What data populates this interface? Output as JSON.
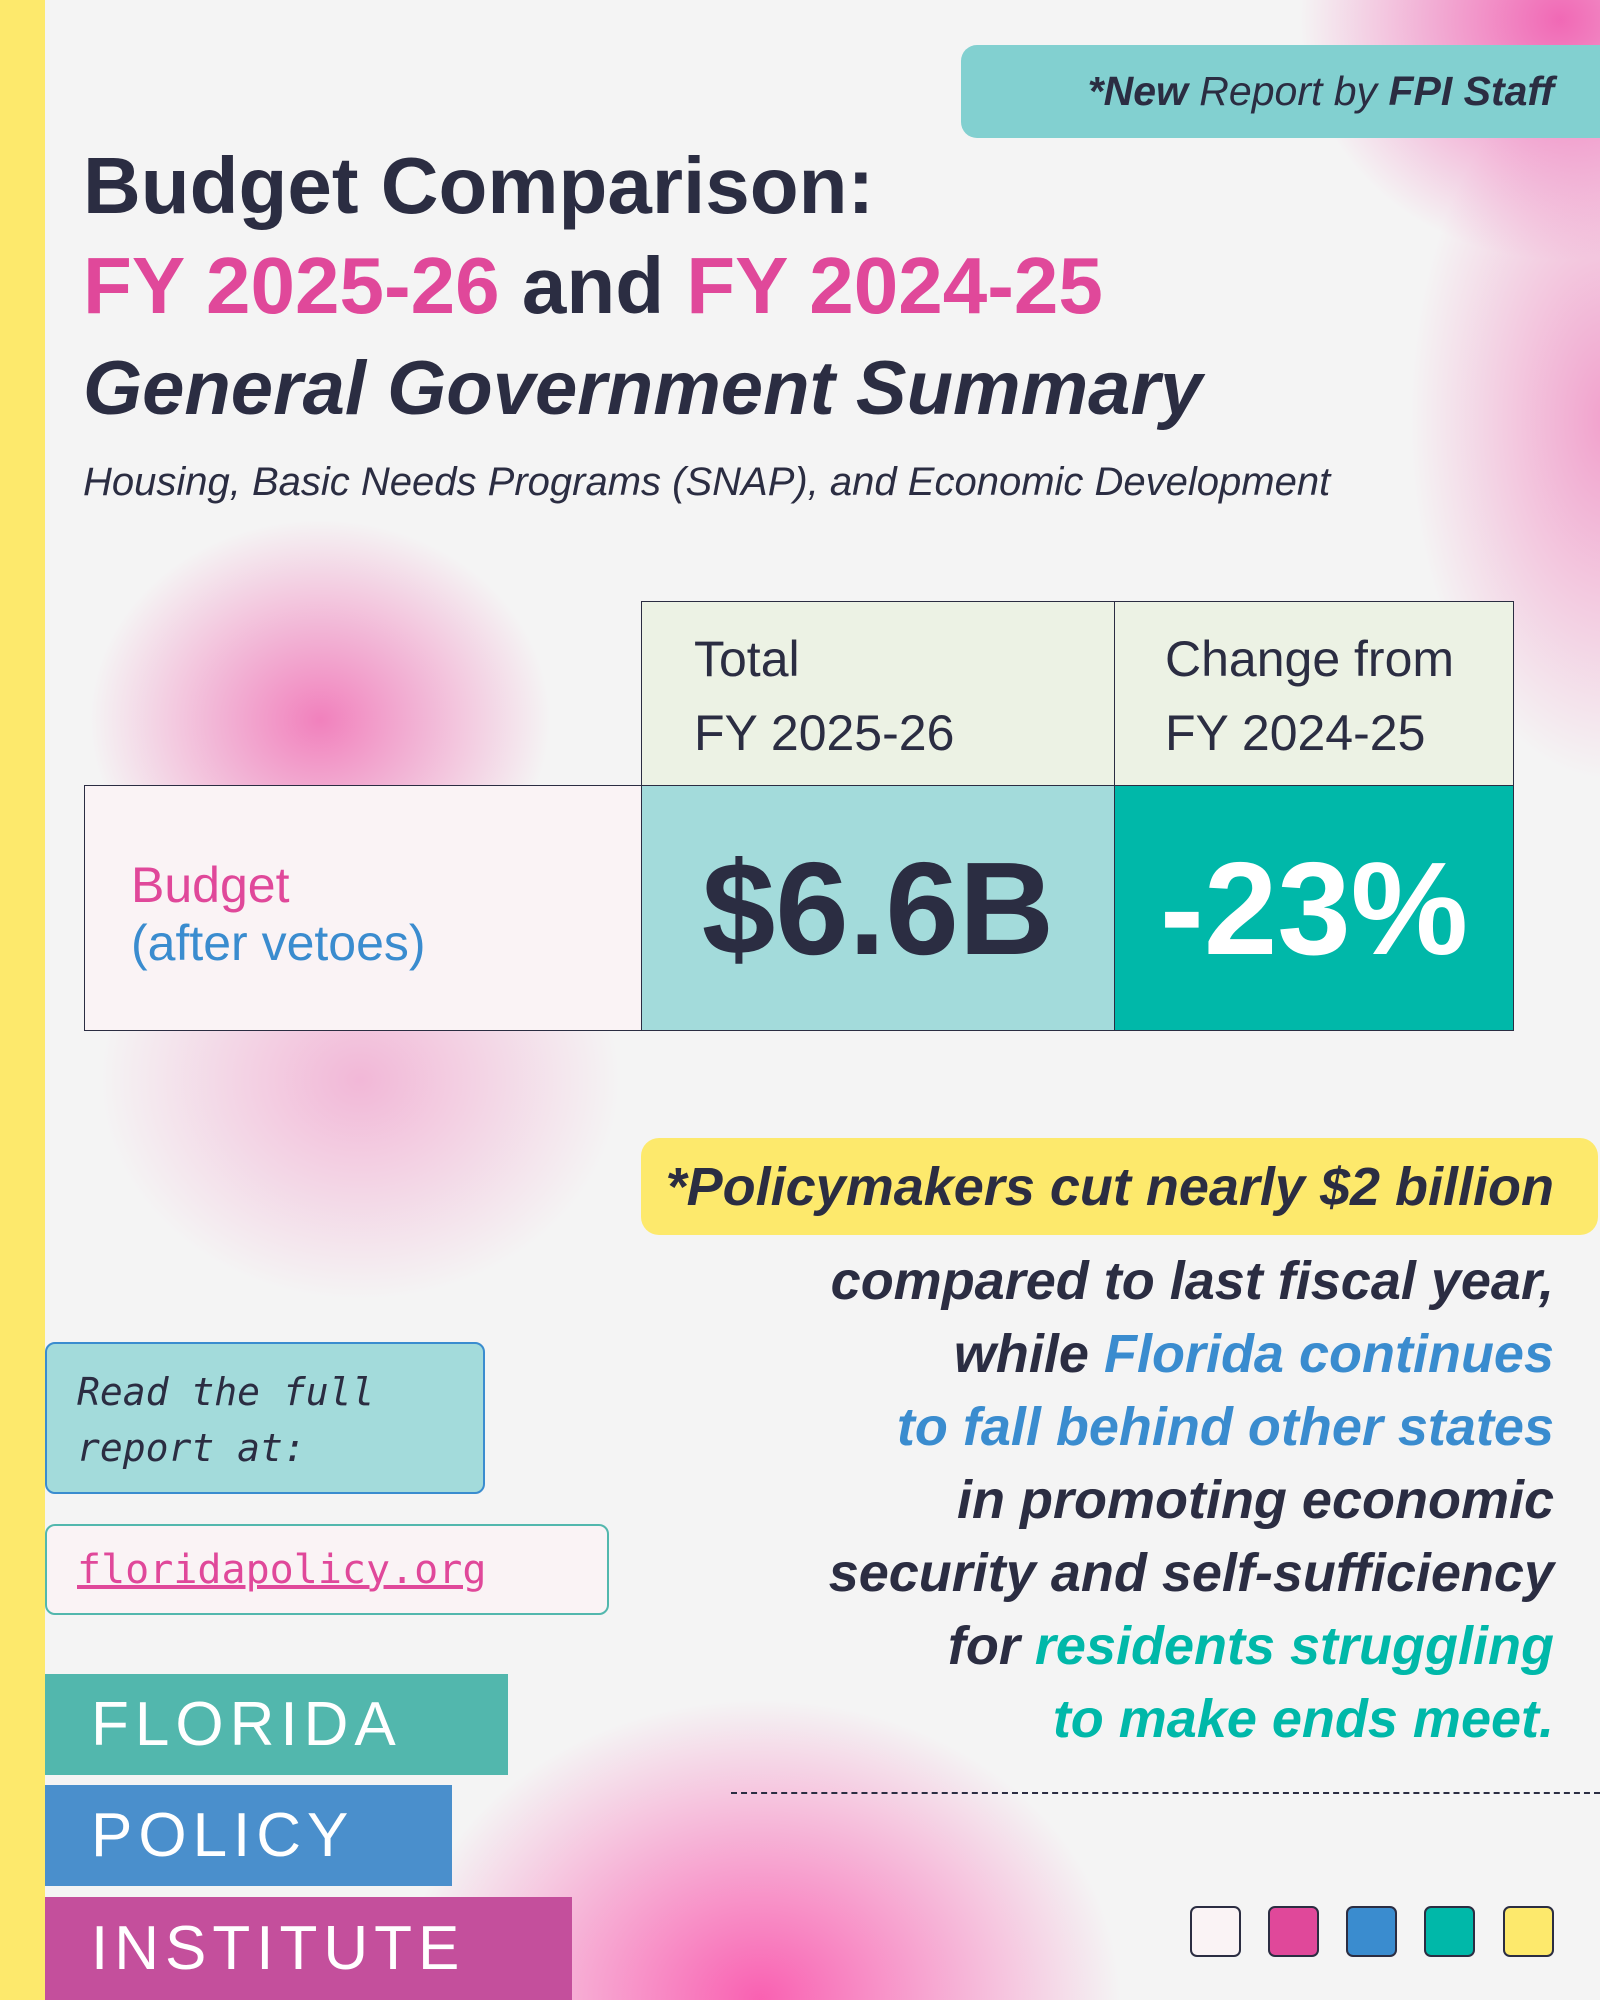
{
  "badge": {
    "prefix": "*New ",
    "mid": "Report by ",
    "bold": "FPI Staff"
  },
  "title": {
    "line1": "Budget Comparison:",
    "fy_current": "FY 2025-26",
    "and": " and ",
    "fy_prior": "FY 2024-25",
    "line3": "General Government Summary",
    "subtitle": "Housing, Basic Needs Programs (SNAP), and Economic Development"
  },
  "table": {
    "headers": [
      {
        "l1": "Total",
        "l2": "FY 2025-26"
      },
      {
        "l1": "Change from",
        "l2": "FY 2024-25"
      }
    ],
    "row": {
      "label1": "Budget",
      "label2": "(after vetoes)",
      "total": "$6.6B",
      "change": "-23%"
    }
  },
  "highlight": "*Policymakers cut nearly $2 billion",
  "paragraph": {
    "l1": "compared to last fiscal year,",
    "l2a": "while ",
    "l2b": "Florida continues",
    "l3": "to fall behind other states",
    "l4": "in promoting economic",
    "l5": "security and self-sufficiency",
    "l6a": "for ",
    "l6b": "residents struggling",
    "l7": "to make ends meet."
  },
  "read": {
    "l1": "Read the full",
    "l2": "report at:"
  },
  "url": "floridapolicy.org",
  "logo": [
    "FLORIDA",
    "POLICY",
    "INSTITUTE"
  ],
  "colors": {
    "pink": "#e0489a",
    "dark": "#2b2d42",
    "blue": "#3a8ccf",
    "teal": "#00b8a9",
    "yellow": "#fde96c",
    "swatches": [
      "#faf3f5",
      "#e0489a",
      "#3a8ccf",
      "#00b8a9",
      "#fde96c"
    ]
  }
}
